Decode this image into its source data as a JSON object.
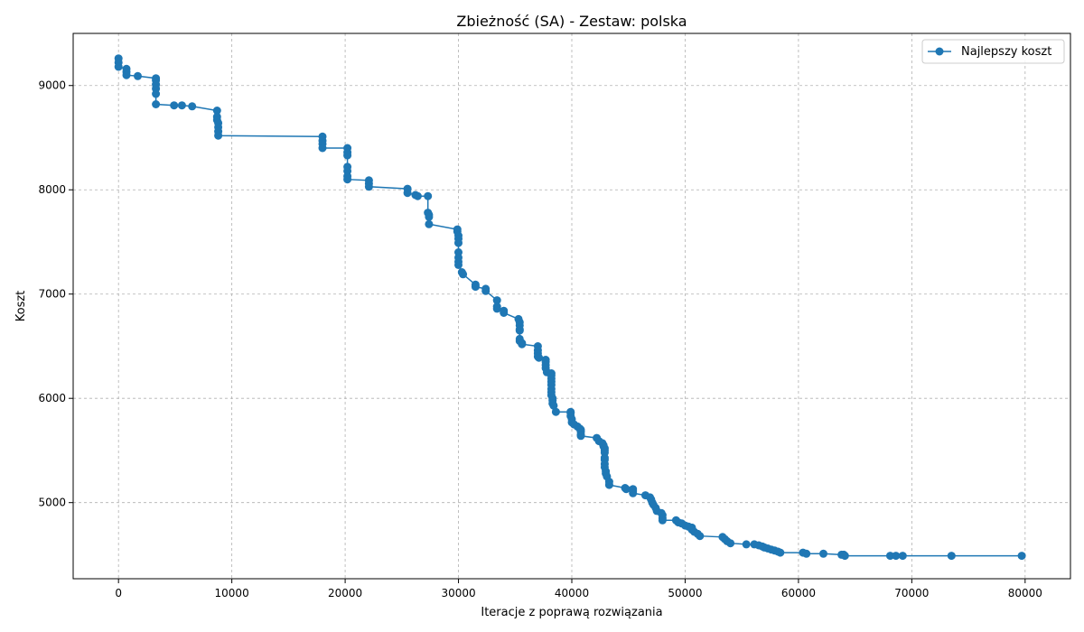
{
  "chart_data": {
    "type": "line",
    "title": "Zbieżność (SA) - Zestaw: polska",
    "xlabel": "Iteracje z poprawą rozwiązania",
    "ylabel": "Koszt",
    "xlim": [
      -4000,
      84000
    ],
    "ylim": [
      4270,
      9500
    ],
    "xticks": [
      0,
      10000,
      20000,
      30000,
      40000,
      50000,
      60000,
      70000,
      80000
    ],
    "xtick_labels": [
      "0",
      "10000",
      "20000",
      "30000",
      "40000",
      "50000",
      "60000",
      "70000",
      "80000"
    ],
    "yticks": [
      5000,
      6000,
      7000,
      8000,
      9000
    ],
    "ytick_labels": [
      "5000",
      "6000",
      "7000",
      "8000",
      "9000"
    ],
    "grid": true,
    "legend_position": "top-right",
    "color": "#1f77b4",
    "series": [
      {
        "name": "Najlepszy koszt",
        "points": [
          [
            0,
            9260
          ],
          [
            0,
            9220
          ],
          [
            0,
            9180
          ],
          [
            700,
            9160
          ],
          [
            700,
            9130
          ],
          [
            700,
            9100
          ],
          [
            1700,
            9090
          ],
          [
            3300,
            9070
          ],
          [
            3300,
            9050
          ],
          [
            3300,
            9010
          ],
          [
            3300,
            8970
          ],
          [
            3300,
            8920
          ],
          [
            3300,
            8820
          ],
          [
            4900,
            8810
          ],
          [
            5600,
            8810
          ],
          [
            6500,
            8800
          ],
          [
            8700,
            8760
          ],
          [
            8700,
            8700
          ],
          [
            8700,
            8670
          ],
          [
            8800,
            8640
          ],
          [
            8800,
            8600
          ],
          [
            8800,
            8560
          ],
          [
            8800,
            8520
          ],
          [
            18000,
            8510
          ],
          [
            18000,
            8470
          ],
          [
            18000,
            8440
          ],
          [
            18000,
            8400
          ],
          [
            20200,
            8400
          ],
          [
            20200,
            8360
          ],
          [
            20200,
            8330
          ],
          [
            20200,
            8220
          ],
          [
            20200,
            8180
          ],
          [
            20200,
            8130
          ],
          [
            20200,
            8100
          ],
          [
            22100,
            8090
          ],
          [
            22100,
            8060
          ],
          [
            22100,
            8030
          ],
          [
            25500,
            8010
          ],
          [
            25500,
            7970
          ],
          [
            26200,
            7950
          ],
          [
            26400,
            7940
          ],
          [
            27300,
            7940
          ],
          [
            27300,
            7780
          ],
          [
            27400,
            7760
          ],
          [
            27400,
            7740
          ],
          [
            27400,
            7670
          ],
          [
            29900,
            7620
          ],
          [
            29900,
            7600
          ],
          [
            30000,
            7560
          ],
          [
            30000,
            7530
          ],
          [
            30000,
            7490
          ],
          [
            30000,
            7400
          ],
          [
            30000,
            7350
          ],
          [
            30000,
            7310
          ],
          [
            30000,
            7280
          ],
          [
            30300,
            7210
          ],
          [
            30400,
            7190
          ],
          [
            31500,
            7090
          ],
          [
            31500,
            7070
          ],
          [
            32400,
            7050
          ],
          [
            32400,
            7030
          ],
          [
            33400,
            6940
          ],
          [
            33400,
            6880
          ],
          [
            33400,
            6860
          ],
          [
            34000,
            6840
          ],
          [
            34000,
            6820
          ],
          [
            35300,
            6760
          ],
          [
            35400,
            6730
          ],
          [
            35400,
            6700
          ],
          [
            35400,
            6660
          ],
          [
            35400,
            6650
          ],
          [
            35400,
            6570
          ],
          [
            35400,
            6550
          ],
          [
            35600,
            6530
          ],
          [
            35600,
            6520
          ],
          [
            37000,
            6500
          ],
          [
            37000,
            6460
          ],
          [
            37000,
            6430
          ],
          [
            37000,
            6400
          ],
          [
            37100,
            6390
          ],
          [
            37700,
            6370
          ],
          [
            37700,
            6350
          ],
          [
            37700,
            6320
          ],
          [
            37700,
            6290
          ],
          [
            37800,
            6250
          ],
          [
            38200,
            6240
          ],
          [
            38200,
            6220
          ],
          [
            38200,
            6190
          ],
          [
            38200,
            6160
          ],
          [
            38200,
            6130
          ],
          [
            38200,
            6090
          ],
          [
            38200,
            6060
          ],
          [
            38200,
            6030
          ],
          [
            38300,
            6000
          ],
          [
            38300,
            5980
          ],
          [
            38300,
            5950
          ],
          [
            38400,
            5930
          ],
          [
            38600,
            5870
          ],
          [
            39900,
            5870
          ],
          [
            39900,
            5860
          ],
          [
            39900,
            5830
          ],
          [
            40000,
            5800
          ],
          [
            40000,
            5770
          ],
          [
            40200,
            5750
          ],
          [
            40500,
            5730
          ],
          [
            40700,
            5710
          ],
          [
            40800,
            5700
          ],
          [
            40800,
            5680
          ],
          [
            40800,
            5650
          ],
          [
            40800,
            5640
          ],
          [
            42200,
            5620
          ],
          [
            42400,
            5590
          ],
          [
            42700,
            5570
          ],
          [
            42800,
            5550
          ],
          [
            42800,
            5540
          ],
          [
            42900,
            5520
          ],
          [
            42900,
            5500
          ],
          [
            42900,
            5480
          ],
          [
            42900,
            5430
          ],
          [
            42900,
            5410
          ],
          [
            42900,
            5370
          ],
          [
            42900,
            5340
          ],
          [
            43000,
            5300
          ],
          [
            43000,
            5280
          ],
          [
            43100,
            5250
          ],
          [
            43300,
            5200
          ],
          [
            43300,
            5170
          ],
          [
            44700,
            5140
          ],
          [
            44800,
            5130
          ],
          [
            45400,
            5130
          ],
          [
            45400,
            5110
          ],
          [
            45400,
            5090
          ],
          [
            46500,
            5070
          ],
          [
            46900,
            5050
          ],
          [
            47000,
            5030
          ],
          [
            47100,
            5000
          ],
          [
            47200,
            4980
          ],
          [
            47400,
            4950
          ],
          [
            47500,
            4920
          ],
          [
            47900,
            4900
          ],
          [
            48000,
            4880
          ],
          [
            48000,
            4850
          ],
          [
            48000,
            4830
          ],
          [
            49200,
            4830
          ],
          [
            49400,
            4810
          ],
          [
            49700,
            4800
          ],
          [
            50000,
            4780
          ],
          [
            50300,
            4770
          ],
          [
            50600,
            4760
          ],
          [
            50600,
            4740
          ],
          [
            50800,
            4720
          ],
          [
            51100,
            4700
          ],
          [
            51300,
            4680
          ],
          [
            53300,
            4670
          ],
          [
            53500,
            4650
          ],
          [
            53700,
            4630
          ],
          [
            54000,
            4610
          ],
          [
            55400,
            4600
          ],
          [
            56100,
            4600
          ],
          [
            56500,
            4590
          ],
          [
            56800,
            4580
          ],
          [
            57000,
            4570
          ],
          [
            57300,
            4560
          ],
          [
            57600,
            4550
          ],
          [
            57900,
            4540
          ],
          [
            58200,
            4530
          ],
          [
            58400,
            4520
          ],
          [
            60400,
            4520
          ],
          [
            60700,
            4510
          ],
          [
            62200,
            4510
          ],
          [
            63800,
            4500
          ],
          [
            64000,
            4500
          ],
          [
            64100,
            4490
          ],
          [
            68100,
            4490
          ],
          [
            68600,
            4490
          ],
          [
            69200,
            4490
          ],
          [
            73500,
            4490
          ],
          [
            79700,
            4490
          ]
        ]
      }
    ]
  }
}
